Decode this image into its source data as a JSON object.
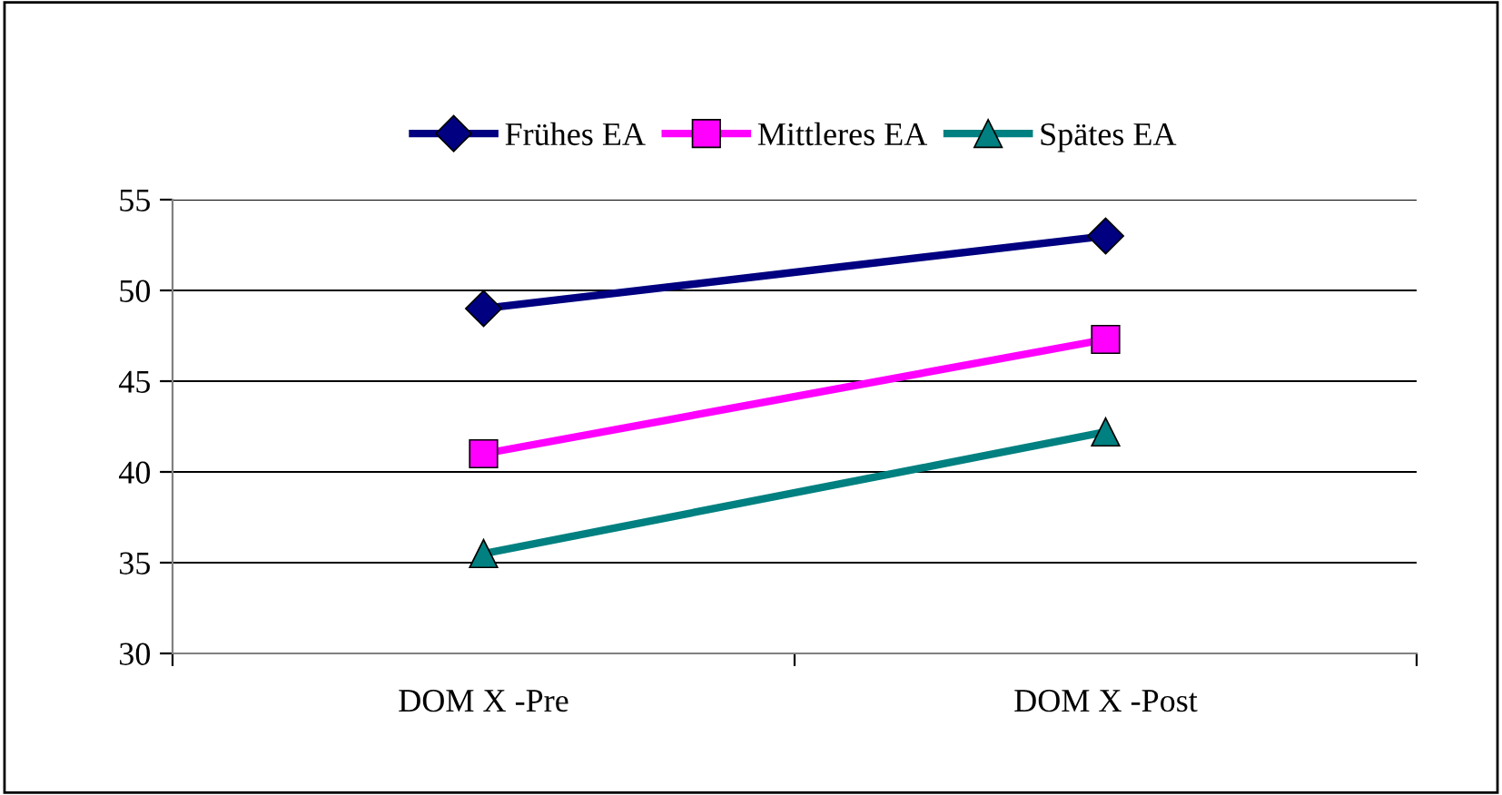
{
  "chart_data": {
    "type": "line",
    "categories": [
      "DOM X -Pre",
      "DOM X -Post"
    ],
    "series": [
      {
        "name": "Frühes EA",
        "color": "#000080",
        "values": [
          49.0,
          53.0
        ],
        "marker": "diamond"
      },
      {
        "name": "Mittleres EA",
        "color": "#ff00ff",
        "values": [
          41.0,
          47.3
        ],
        "marker": "square"
      },
      {
        "name": "Spätes EA",
        "color": "#008080",
        "values": [
          35.5,
          42.2
        ],
        "marker": "triangle"
      }
    ],
    "ylim": [
      30,
      55
    ],
    "yticks": [
      30,
      35,
      40,
      45,
      50,
      55
    ],
    "grid": "y",
    "legend": "top",
    "line_style": "solid"
  }
}
